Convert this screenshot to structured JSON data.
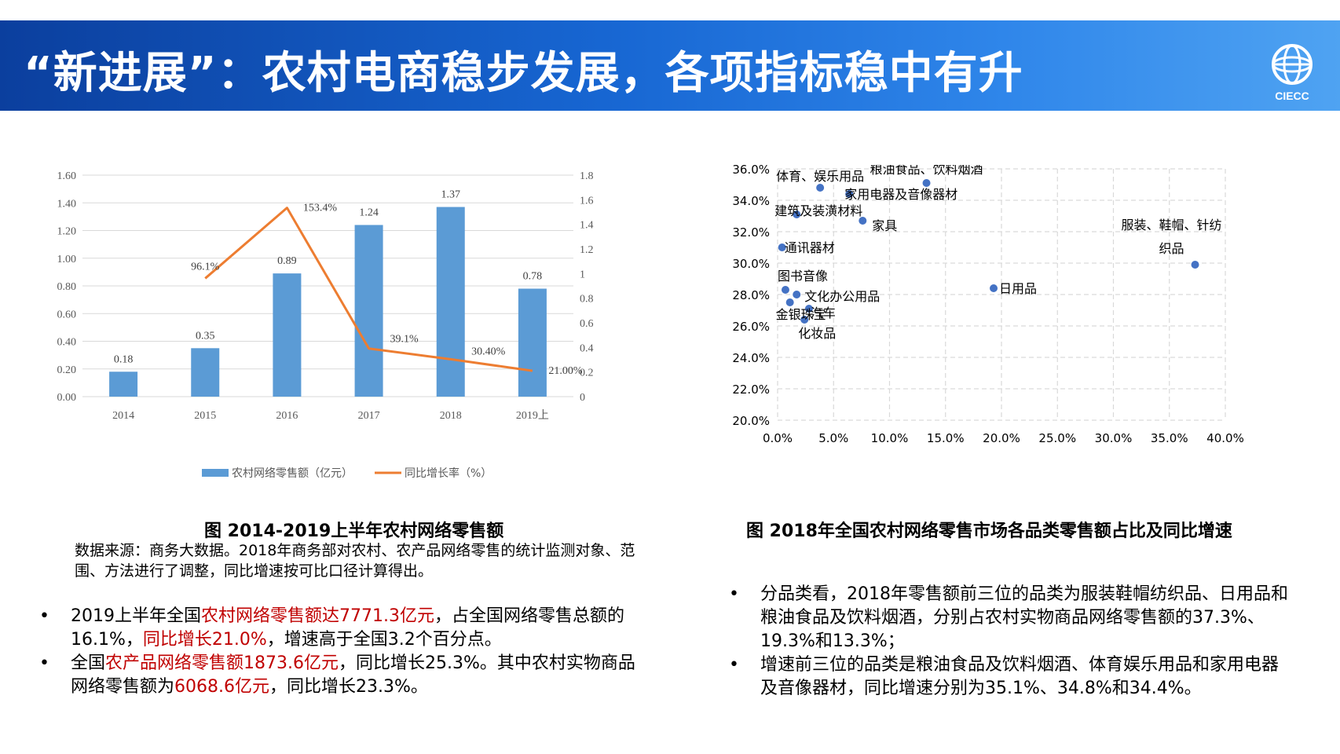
{
  "header": {
    "title": "“新进展”：农村电商稳步发展，各项指标稳中有升",
    "logo_text": "CIECC"
  },
  "left_chart": {
    "caption": "图  2014-2019上半年农村网络零售额",
    "source": "数据来源：商务大数据。2018年商务部对农村、农产品网络零售的统计监测对象、范围、方法进行了调整，同比增速按可比口径计算得出。",
    "legend": [
      "农村网络零售额（亿元）",
      "同比增长率（%）"
    ],
    "colors": {
      "bar": "#5b9bd5",
      "line": "#ed7d31"
    }
  },
  "right_chart": {
    "caption": "图  2018年全国农村网络零售市场各品类零售额占比及同比增速",
    "colors": {
      "point": "#4472c4"
    }
  },
  "chart_data": [
    {
      "type": "bar",
      "categories": [
        "2014",
        "2015",
        "2016",
        "2017",
        "2018",
        "2019上"
      ],
      "series": [
        {
          "name": "农村网络零售额（亿元）",
          "values": [
            0.18,
            0.35,
            0.89,
            1.24,
            1.37,
            0.78
          ],
          "labels": [
            "0.18",
            "0.35",
            "0.89",
            "1.24",
            "1.37",
            "0.78"
          ]
        },
        {
          "name": "同比增长率（%）",
          "type": "line",
          "values": [
            null,
            0.961,
            1.534,
            0.391,
            0.304,
            0.21
          ],
          "labels": [
            "",
            "96.1%",
            "153.4%",
            "39.1%",
            "30.40%",
            "21.00%"
          ]
        }
      ],
      "ylim": [
        0,
        1.6
      ],
      "y_ticks": [
        "0.00",
        "0.20",
        "0.40",
        "0.60",
        "0.80",
        "1.00",
        "1.20",
        "1.40",
        "1.60"
      ],
      "y2lim": [
        0,
        1.8
      ],
      "y2_ticks": [
        "0",
        "0.2",
        "0.4",
        "0.6",
        "0.8",
        "1",
        "1.2",
        "1.4",
        "1.6",
        "1.8"
      ],
      "grid": true,
      "legend_position": "bottom"
    },
    {
      "type": "scatter",
      "xlim": [
        0,
        40
      ],
      "ylim": [
        20,
        36
      ],
      "x_ticks": [
        "0.0%",
        "5.0%",
        "10.0%",
        "15.0%",
        "20.0%",
        "25.0%",
        "30.0%",
        "35.0%",
        "40.0%"
      ],
      "y_ticks": [
        "20.0%",
        "22.0%",
        "24.0%",
        "26.0%",
        "28.0%",
        "30.0%",
        "32.0%",
        "34.0%",
        "36.0%"
      ],
      "grid": "dashed",
      "points": [
        {
          "label": "粮油食品、饮料烟酒",
          "x": 13.3,
          "y": 35.1
        },
        {
          "label": "体育、娱乐用品",
          "x": 3.8,
          "y": 34.8
        },
        {
          "label": "家用电器及音像器材",
          "x": 6.4,
          "y": 34.4
        },
        {
          "label": "建筑及装潢材料",
          "x": 1.7,
          "y": 33.1
        },
        {
          "label": "家具",
          "x": 7.6,
          "y": 32.7
        },
        {
          "label": "通讯器材",
          "x": 0.4,
          "y": 31.0
        },
        {
          "label": "服装、鞋帽、针纺织品",
          "x": 37.3,
          "y": 29.9
        },
        {
          "label": "日用品",
          "x": 19.3,
          "y": 28.4
        },
        {
          "label": "图书音像",
          "x": 0.7,
          "y": 28.3
        },
        {
          "label": "文化办公用品",
          "x": 1.7,
          "y": 28.0
        },
        {
          "label": "金银珠宝",
          "x": 1.1,
          "y": 27.5
        },
        {
          "label": "汽车",
          "x": 2.8,
          "y": 27.1
        },
        {
          "label": "化妆品",
          "x": 2.4,
          "y": 26.4
        }
      ]
    }
  ],
  "bullets_left": [
    {
      "parts": [
        "2019上半年全国",
        "农村网络零售额达7771.3亿元",
        "，占全国网络零售总额的16.1%，",
        "同比增长21.0%",
        "，增速高于全国3.2个百分点。"
      ]
    },
    {
      "parts": [
        "全国",
        "农产品网络零售额1873.6亿元",
        "，同比增长25.3%。其中农村实物商品网络零售额为",
        "6068.6亿元",
        "，同比增长23.3%。"
      ]
    }
  ],
  "bullets_right": [
    "分品类看，2018年零售额前三位的品类为服装鞋帽纺织品、日用品和粮油食品及饮料烟酒，分别占农村实物商品网络零售额的37.3%、19.3%和13.3%；",
    "增速前三位的品类是粮油食品及饮料烟酒、体育娱乐用品和家用电器及音像器材，同比增速分别为35.1%、34.8%和34.4%。"
  ],
  "bullet_symbol": "•"
}
